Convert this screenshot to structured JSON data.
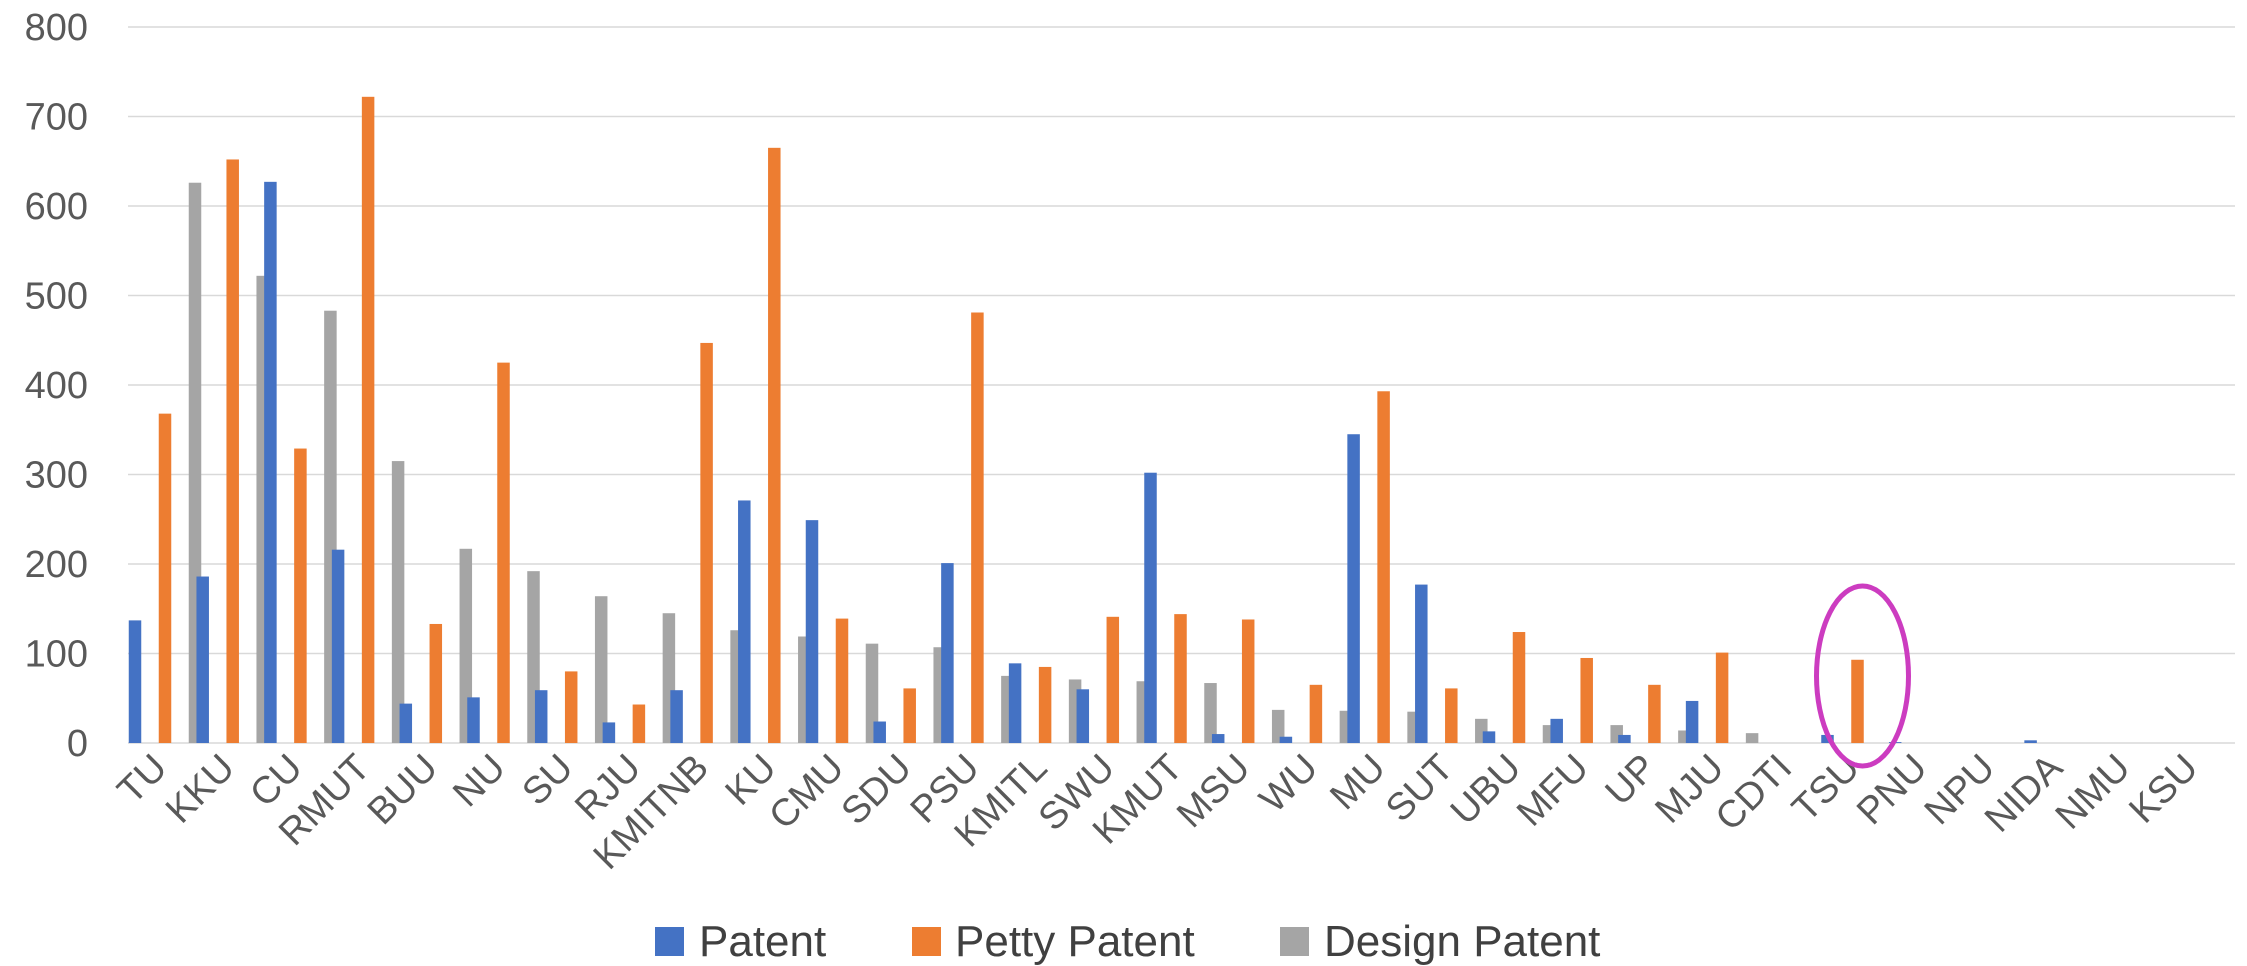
{
  "chart_data": {
    "type": "bar",
    "title": "",
    "xlabel": "",
    "ylabel": "",
    "ylim": [
      0,
      800
    ],
    "yticks": [
      0,
      100,
      200,
      300,
      400,
      500,
      600,
      700,
      800
    ],
    "grid": true,
    "legend_position": "bottom",
    "categories": [
      "TU",
      "KKU",
      "CU",
      "RMUT",
      "BUU",
      "NU",
      "SU",
      "RJU",
      "KMITNB",
      "KU",
      "CMU",
      "SDU",
      "PSU",
      "KMITL",
      "SWU",
      "KMUT",
      "MSU",
      "WU",
      "MU",
      "SUT",
      "UBU",
      "MFU",
      "UP",
      "MJU",
      "CDTI",
      "TSU",
      "PNU",
      "NPU",
      "NIDA",
      "NMU",
      "KSU"
    ],
    "series": [
      {
        "name": "Patent",
        "color": "#4472c4",
        "values": [
          137,
          186,
          627,
          216,
          44,
          51,
          59,
          23,
          59,
          271,
          249,
          24,
          201,
          89,
          60,
          302,
          10,
          7,
          345,
          177,
          13,
          27,
          9,
          47,
          0,
          9,
          1,
          0,
          3,
          0,
          0
        ]
      },
      {
        "name": "Petty Patent",
        "color": "#ed7d31",
        "values": [
          368,
          652,
          329,
          722,
          133,
          425,
          80,
          43,
          447,
          665,
          139,
          61,
          481,
          85,
          141,
          144,
          138,
          65,
          393,
          61,
          124,
          95,
          65,
          101,
          0,
          93,
          0,
          0,
          0,
          0,
          0
        ]
      },
      {
        "name": "Design Patent",
        "color": "#a5a5a5",
        "values": [
          626,
          522,
          483,
          315,
          217,
          192,
          164,
          145,
          126,
          119,
          111,
          107,
          75,
          71,
          69,
          67,
          37,
          36,
          35,
          27,
          20,
          20,
          14,
          11,
          0,
          0,
          0,
          0,
          0,
          0,
          0
        ]
      }
    ],
    "annotation": {
      "shape": "ellipse",
      "target_category": "TSU",
      "color": "#cc3cc0"
    }
  }
}
